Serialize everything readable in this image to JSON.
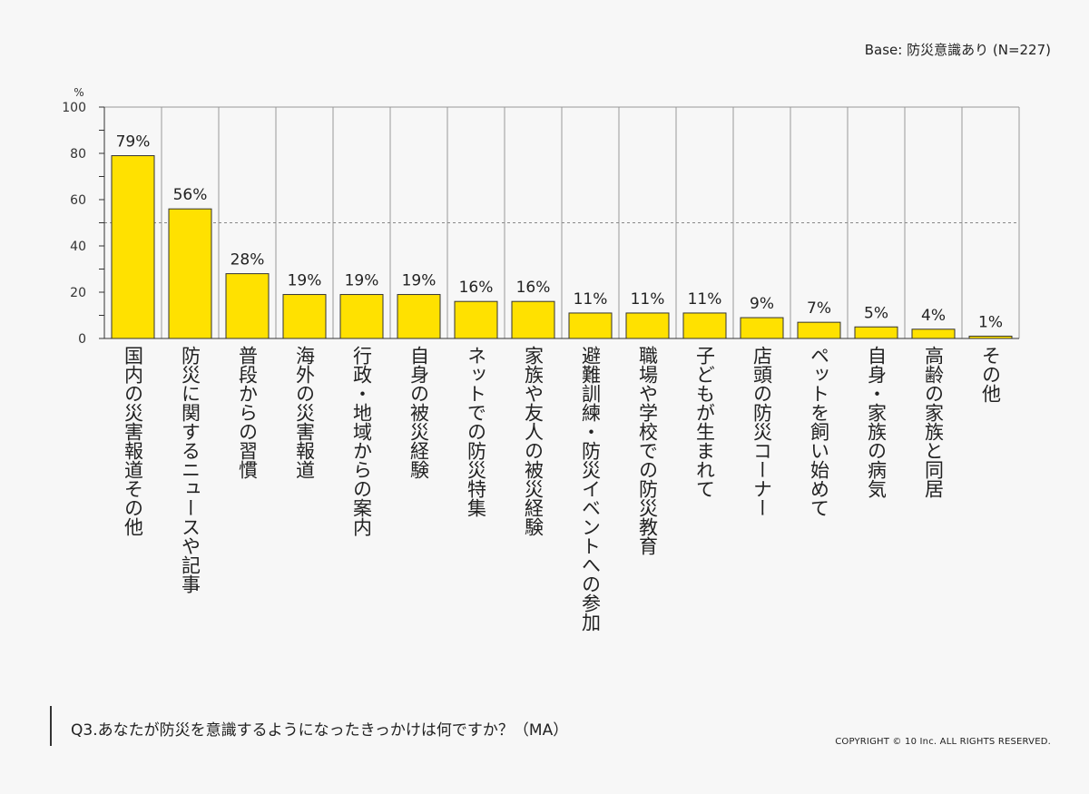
{
  "base_note": "Base: 防災意識あり (N=227)",
  "question": "Q3.あなたが防災を意識するようになったきっかけは何ですか？（MA）",
  "copyright": "COPYRIGHT © 10 Inc. ALL RIGHTS RESERVED.",
  "chart_data": {
    "type": "bar",
    "unit_label": "%",
    "ylim": [
      0,
      100
    ],
    "yticks": [
      0,
      20,
      40,
      60,
      80,
      100
    ],
    "reference_line": 50,
    "bar_color": "#ffe100",
    "bar_stroke": "#333333",
    "categories": [
      "国内の災害報道その他",
      "防災に関するニュースや記事",
      "普段からの習慣",
      "海外の災害報道",
      "行政・地域からの案内",
      "自身の被災経験",
      "ネットでの防災特集",
      "家族や友人の被災経験",
      "避難訓練・防災イベントへの参加",
      "職場や学校での防災教育",
      "子どもが生まれて",
      "店頭の防災コーナー",
      "ペットを飼い始めて",
      "自身・家族の病気",
      "高齢の家族と同居",
      "その他"
    ],
    "values": [
      79,
      56,
      28,
      19,
      19,
      19,
      16,
      16,
      11,
      11,
      11,
      9,
      7,
      5,
      4,
      1
    ],
    "value_labels": [
      "79%",
      "56%",
      "28%",
      "19%",
      "19%",
      "19%",
      "16%",
      "16%",
      "11%",
      "11%",
      "11%",
      "9%",
      "7%",
      "5%",
      "4%",
      "1%"
    ]
  }
}
